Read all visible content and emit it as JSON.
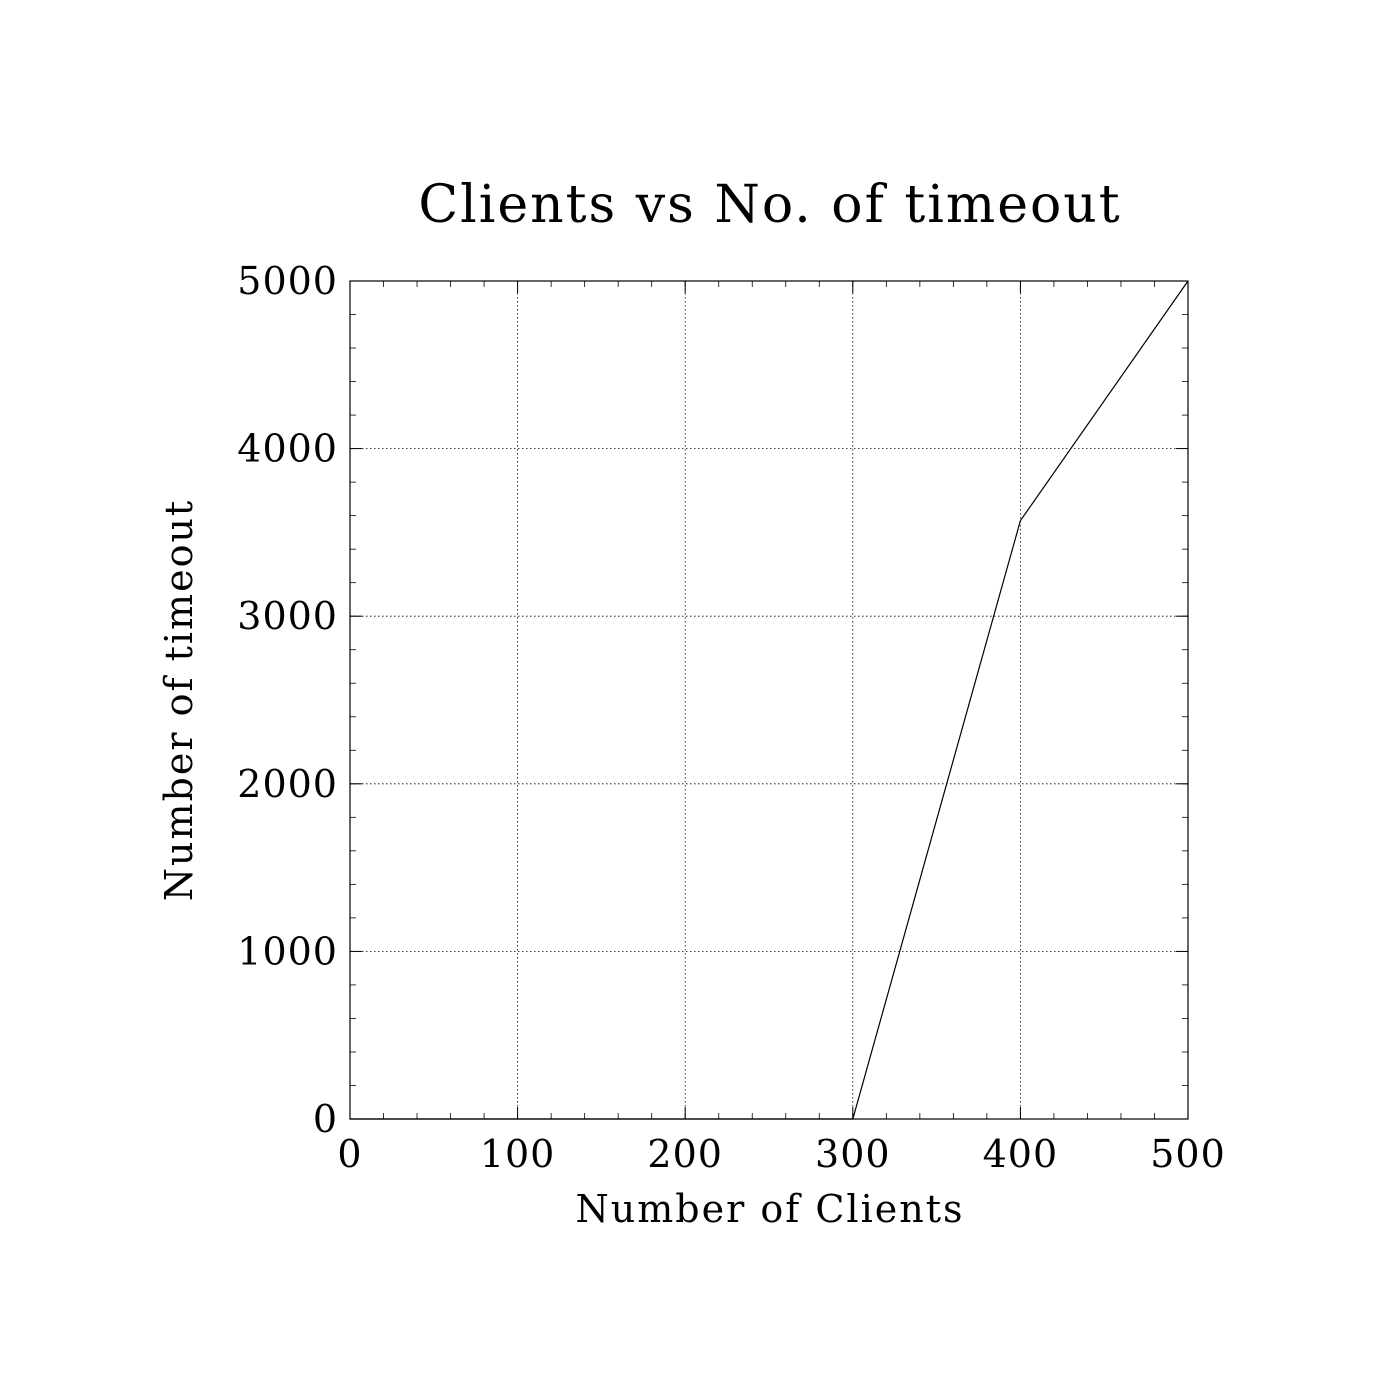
{
  "chart_data": {
    "type": "line",
    "title": "Clients vs No. of timeout",
    "xlabel": "Number of Clients",
    "ylabel": "Number of timeout",
    "xlim": [
      0,
      500
    ],
    "ylim": [
      0,
      5000
    ],
    "xticks": [
      "0",
      "100",
      "200",
      "300",
      "400",
      "500"
    ],
    "yticks": [
      "0",
      "1000",
      "2000",
      "3000",
      "4000",
      "5000"
    ],
    "grid": true,
    "series": [
      {
        "x": [
          0,
          100,
          200,
          300,
          400,
          500
        ],
        "y": [
          0,
          0,
          0,
          0,
          3570,
          5000
        ]
      }
    ],
    "colors": {
      "line": "#000000",
      "axes": "#000000",
      "grid": "#000000"
    }
  }
}
